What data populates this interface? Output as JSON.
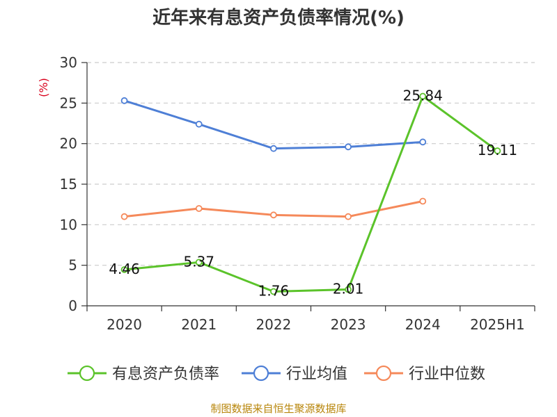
{
  "chart_data": {
    "type": "line",
    "title": "近年来有息资产负债率情况(%)",
    "ylabel": "(%)",
    "xlabel": "",
    "categories": [
      "2020",
      "2021",
      "2022",
      "2023",
      "2024",
      "2025H1"
    ],
    "ylim": [
      0,
      30
    ],
    "yticks": [
      "0",
      "5",
      "10",
      "15",
      "20",
      "25",
      "30"
    ],
    "grid": true,
    "legend_position": "bottom",
    "series": [
      {
        "name": "有息资产负债率",
        "color": "#5bc32a",
        "values": [
          4.46,
          5.37,
          1.76,
          2.01,
          25.84,
          19.11
        ],
        "labels": [
          "4.46",
          "5.37",
          "1.76",
          "2.01",
          "25.84",
          "19.11"
        ]
      },
      {
        "name": "行业均值",
        "color": "#4e7fd6",
        "values": [
          25.3,
          22.4,
          19.4,
          19.6,
          20.2,
          null
        ]
      },
      {
        "name": "行业中位数",
        "color": "#f5895a",
        "values": [
          11.0,
          12.0,
          11.2,
          11.0,
          12.9,
          null
        ]
      }
    ]
  },
  "source": "制图数据来自恒生聚源数据库"
}
